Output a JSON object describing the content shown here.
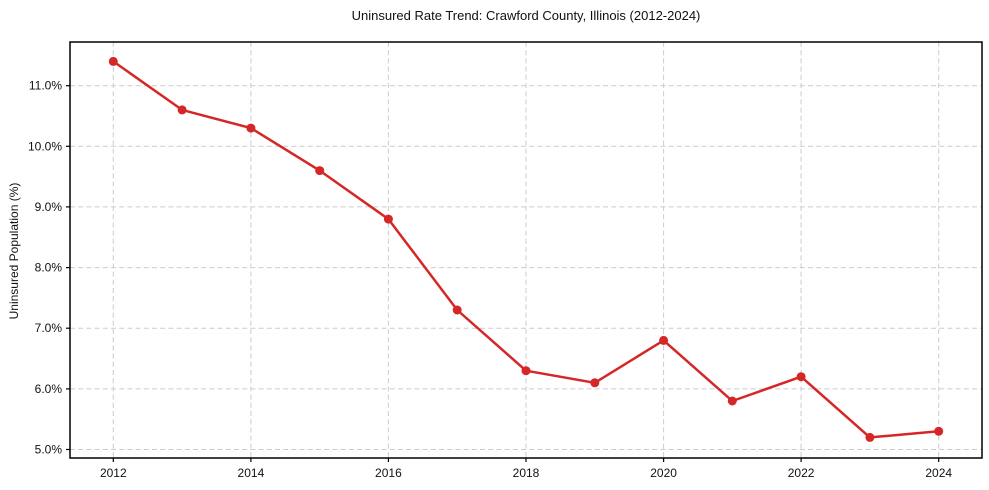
{
  "page": {
    "background_color": "#ffffff"
  },
  "chart_data": {
    "type": "line",
    "title": "Uninsured Rate Trend: Crawford County, Illinois (2012-2024)",
    "xlabel": "",
    "ylabel": "Uninsured Population (%)",
    "x": [
      2012,
      2013,
      2014,
      2015,
      2016,
      2017,
      2018,
      2019,
      2020,
      2021,
      2022,
      2023,
      2024
    ],
    "values": [
      11.4,
      10.6,
      10.3,
      9.6,
      8.8,
      7.3,
      6.3,
      6.1,
      6.8,
      5.8,
      6.2,
      5.2,
      5.3
    ],
    "x_ticks": [
      2012,
      2014,
      2016,
      2018,
      2020,
      2022,
      2024
    ],
    "x_tick_labels": [
      "2012",
      "2014",
      "2016",
      "2018",
      "2020",
      "2022",
      "2024"
    ],
    "y_ticks": [
      5,
      6,
      7,
      8,
      9,
      10,
      11
    ],
    "y_tick_labels": [
      "5.0%",
      "6.0%",
      "7.0%",
      "8.0%",
      "9.0%",
      "10.0%",
      "11.0%"
    ],
    "xlim": [
      2011.37,
      2024.63
    ],
    "ylim": [
      4.86,
      11.72
    ],
    "grid": true,
    "grid_style": "dashed",
    "grid_color": "#cccccc",
    "legend": false,
    "line_color": "#d62728",
    "marker": "circle",
    "spine_color": "#000000"
  }
}
